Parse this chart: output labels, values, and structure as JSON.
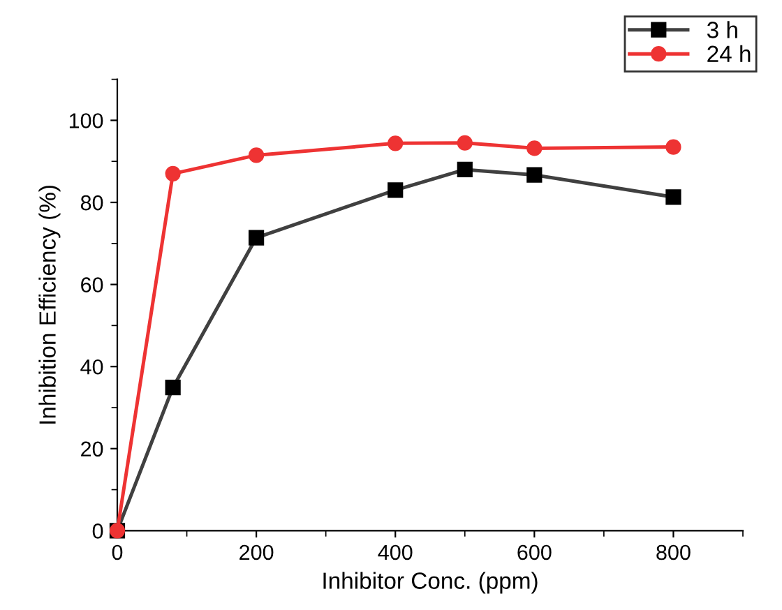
{
  "chart_data": {
    "type": "line",
    "xlabel": "Inhibitor Conc. (ppm)",
    "ylabel": "Inhibition Efficiency (%)",
    "x": [
      0,
      80,
      200,
      400,
      500,
      600,
      800
    ],
    "series": [
      {
        "name": "3 h",
        "color": "#404040",
        "marker": "square",
        "values": [
          0,
          34.9,
          71.4,
          83,
          88,
          86.7,
          81.3
        ]
      },
      {
        "name": "24 h",
        "color": "#ee3333",
        "marker": "circle",
        "values": [
          0,
          87,
          91.5,
          94.4,
          94.5,
          93.2,
          93.5
        ]
      }
    ],
    "xlim": [
      0,
      900
    ],
    "xticks": [
      0,
      200,
      400,
      600,
      800
    ],
    "ylim": [
      0,
      110
    ],
    "yticks": [
      0,
      20,
      40,
      60,
      80,
      100
    ],
    "grid": false,
    "legend": "top right",
    "line_style": "solid"
  }
}
